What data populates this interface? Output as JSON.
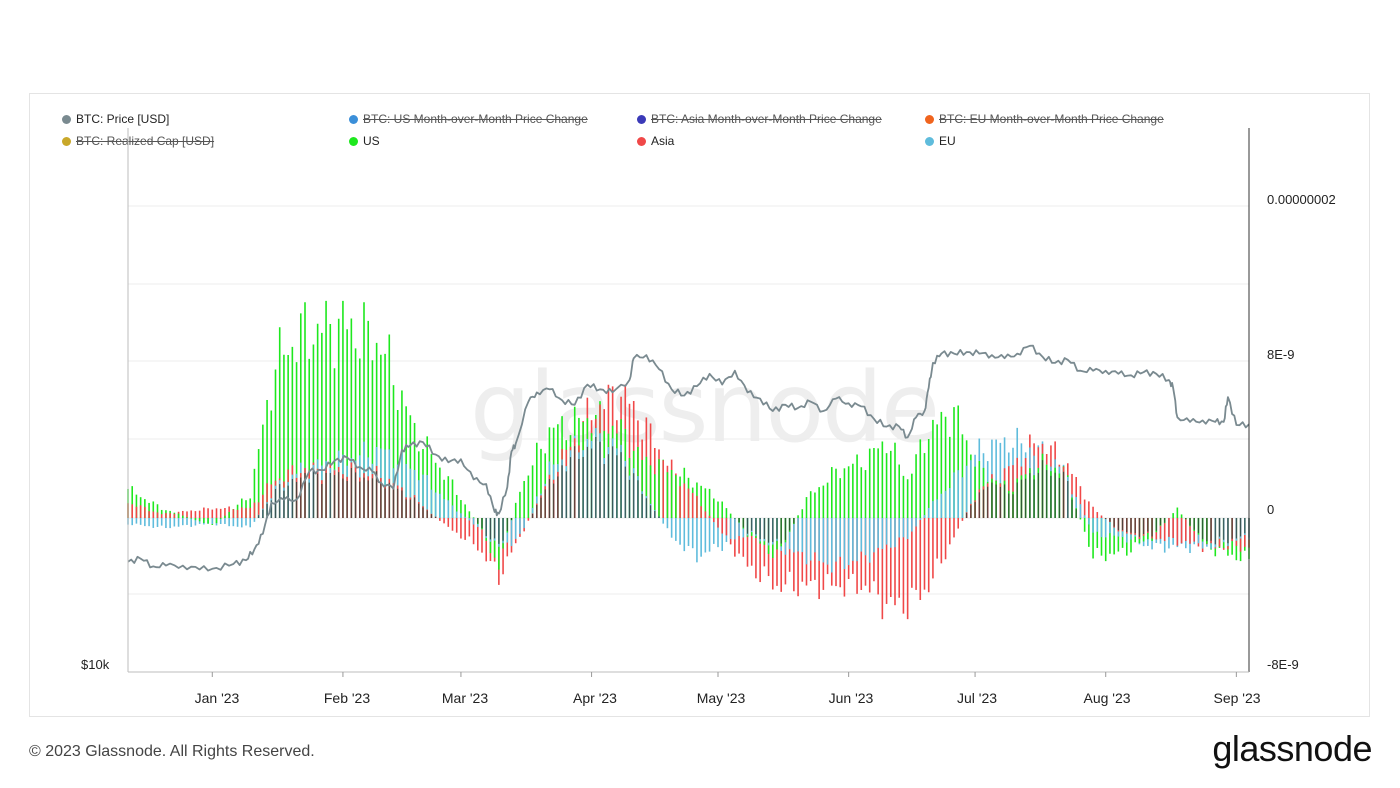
{
  "legend": [
    {
      "label": "BTC: Price [USD]",
      "color": "#7a8a90",
      "off": false
    },
    {
      "label": "BTC: US Month-over-Month Price Change",
      "color": "#3b8fd9",
      "off": true
    },
    {
      "label": "BTC: Asia Month-over-Month Price Change",
      "color": "#3b3ab8",
      "off": true
    },
    {
      "label": "BTC: EU Month-over-Month Price Change",
      "color": "#f0641e",
      "off": true
    },
    {
      "label": "BTC: Realized Cap [USD]",
      "color": "#c9a82a",
      "off": true
    },
    {
      "label": "US",
      "color": "#1ee81e",
      "off": false
    },
    {
      "label": "Asia",
      "color": "#f04848",
      "off": false
    },
    {
      "label": "EU",
      "color": "#5fbcdc",
      "off": false
    }
  ],
  "watermark": "glassnode",
  "footer": "© 2023 Glassnode. All Rights Reserved.",
  "brand": "glassnode",
  "chart_data": {
    "type": "bar",
    "title": "",
    "x_ticks": [
      "Jan '23",
      "Feb '23",
      "Mar '23",
      "Apr '23",
      "May '23",
      "Jun '23",
      "Jul '23",
      "Aug '23",
      "Sep '23"
    ],
    "x_tick_dates": [
      "2023-01-01",
      "2023-02-01",
      "2023-03-01",
      "2023-04-01",
      "2023-05-01",
      "2023-06-01",
      "2023-07-01",
      "2023-08-01",
      "2023-09-01"
    ],
    "x_range": [
      "2022-12-12",
      "2023-09-04"
    ],
    "y_right_ticks": [
      "0.00000002",
      "8E-9",
      "0",
      "-8E-9"
    ],
    "y_right_values": [
      2e-08,
      8e-09,
      0,
      -8e-09
    ],
    "y_right_range": [
      -8e-09,
      2.4e-08
    ],
    "y_left_ticks": [
      "$10k"
    ],
    "price_range": [
      10000,
      40000
    ],
    "price_series": {
      "name": "BTC: Price [USD]",
      "color": "#7a8a90",
      "dates": [
        "2022-12-12",
        "2022-12-15",
        "2022-12-18",
        "2022-12-21",
        "2022-12-25",
        "2022-12-29",
        "2023-01-02",
        "2023-01-06",
        "2023-01-09",
        "2023-01-11",
        "2023-01-13",
        "2023-01-15",
        "2023-01-18",
        "2023-01-21",
        "2023-01-24",
        "2023-01-27",
        "2023-01-30",
        "2023-02-02",
        "2023-02-05",
        "2023-02-08",
        "2023-02-10",
        "2023-02-13",
        "2023-02-15",
        "2023-02-17",
        "2023-02-20",
        "2023-02-23",
        "2023-02-26",
        "2023-03-01",
        "2023-03-04",
        "2023-03-07",
        "2023-03-09",
        "2023-03-10",
        "2023-03-12",
        "2023-03-13",
        "2023-03-14",
        "2023-03-17",
        "2023-03-19",
        "2023-03-22",
        "2023-03-25",
        "2023-03-28",
        "2023-03-31",
        "2023-04-03",
        "2023-04-06",
        "2023-04-10",
        "2023-04-11",
        "2023-04-14",
        "2023-04-17",
        "2023-04-20",
        "2023-04-23",
        "2023-04-26",
        "2023-04-29",
        "2023-05-02",
        "2023-05-05",
        "2023-05-08",
        "2023-05-11",
        "2023-05-14",
        "2023-05-17",
        "2023-05-20",
        "2023-05-23",
        "2023-05-26",
        "2023-05-29",
        "2023-06-01",
        "2023-06-04",
        "2023-06-07",
        "2023-06-10",
        "2023-06-13",
        "2023-06-15",
        "2023-06-17",
        "2023-06-19",
        "2023-06-20",
        "2023-06-21",
        "2023-06-23",
        "2023-06-26",
        "2023-06-29",
        "2023-07-02",
        "2023-07-05",
        "2023-07-08",
        "2023-07-11",
        "2023-07-14",
        "2023-07-17",
        "2023-07-20",
        "2023-07-23",
        "2023-07-26",
        "2023-07-29",
        "2023-08-01",
        "2023-08-04",
        "2023-08-07",
        "2023-08-10",
        "2023-08-13",
        "2023-08-16",
        "2023-08-17",
        "2023-08-18",
        "2023-08-21",
        "2023-08-24",
        "2023-08-27",
        "2023-08-29",
        "2023-08-30",
        "2023-09-01",
        "2023-09-04"
      ],
      "values": [
        17100,
        17300,
        16800,
        16850,
        16850,
        16600,
        16700,
        16950,
        17200,
        17900,
        18900,
        20900,
        21100,
        21100,
        22900,
        23000,
        23600,
        23800,
        23200,
        22900,
        22200,
        21800,
        24300,
        24600,
        24800,
        24000,
        23500,
        23700,
        22400,
        22100,
        20300,
        20200,
        21900,
        24200,
        24700,
        27400,
        28000,
        28200,
        27500,
        27200,
        28500,
        28200,
        28000,
        28800,
        30200,
        30400,
        29500,
        28200,
        27800,
        28400,
        29200,
        28500,
        29400,
        28000,
        27600,
        26800,
        27200,
        27000,
        27400,
        26800,
        27600,
        27300,
        27100,
        26300,
        25800,
        25800,
        25100,
        26400,
        26800,
        28300,
        29900,
        30500,
        30500,
        30600,
        30500,
        30400,
        30200,
        30500,
        31000,
        30300,
        29900,
        30100,
        29400,
        29400,
        29400,
        29200,
        29100,
        29300,
        29200,
        28800,
        28300,
        26400,
        26100,
        26200,
        26100,
        26100,
        27700,
        25900,
        25950
      ]
    },
    "series": [
      {
        "name": "US",
        "color": "#1ee81e"
      },
      {
        "name": "Asia",
        "color": "#f04848"
      },
      {
        "name": "EU",
        "color": "#5fbcdc"
      }
    ],
    "mom_change_keypoints": {
      "dates": [
        "2022-12-12",
        "2022-12-20",
        "2023-01-01",
        "2023-01-10",
        "2023-01-16",
        "2023-01-22",
        "2023-02-01",
        "2023-02-10",
        "2023-02-18",
        "2023-02-26",
        "2023-03-05",
        "2023-03-10",
        "2023-03-15",
        "2023-03-22",
        "2023-04-01",
        "2023-04-08",
        "2023-04-13",
        "2023-04-20",
        "2023-04-26",
        "2023-05-01",
        "2023-05-08",
        "2023-05-15",
        "2023-05-22",
        "2023-05-29",
        "2023-06-05",
        "2023-06-10",
        "2023-06-15",
        "2023-06-20",
        "2023-06-26",
        "2023-07-02",
        "2023-07-09",
        "2023-07-16",
        "2023-07-22",
        "2023-07-29",
        "2023-08-05",
        "2023-08-12",
        "2023-08-18",
        "2023-08-25",
        "2023-09-04"
      ],
      "US": [
        1.5e-09,
        5e-10,
        -4e-10,
        1.2e-09,
        8e-09,
        9.5e-09,
        1e-08,
        9e-09,
        4.5e-09,
        2e-09,
        -3e-10,
        -2.5e-09,
        1.5e-09,
        4.5e-09,
        5.2e-09,
        4.5e-09,
        3e-09,
        2.5e-09,
        1.8e-09,
        1e-09,
        -8e-10,
        -2e-09,
        1e-09,
        2.4e-09,
        3e-09,
        4e-09,
        2e-09,
        4.5e-09,
        5.5e-09,
        2.5e-09,
        1.5e-09,
        2.8e-09,
        2.5e-09,
        -2e-09,
        -1.8e-09,
        -1e-09,
        5e-10,
        -1.5e-09,
        -2.2e-09
      ],
      "Asia": [
        8e-10,
        2e-10,
        5e-10,
        5e-10,
        2e-09,
        2.5e-09,
        2.5e-09,
        2.2e-09,
        1e-09,
        -5e-10,
        -1.5e-09,
        -3e-09,
        -1e-09,
        2e-09,
        5.5e-09,
        6.5e-09,
        5e-09,
        2.5e-09,
        1e-09,
        -5e-10,
        -2.5e-09,
        -3.5e-09,
        -3.5e-09,
        -3.5e-09,
        -3.5e-09,
        -4.5e-09,
        -4.5e-09,
        -3.5e-09,
        -1e-09,
        1.5e-09,
        2.5e-09,
        4e-09,
        3e-09,
        5e-10,
        -8e-10,
        -1e-09,
        -1.2e-09,
        -1.5e-09,
        -1.5e-09
      ],
      "EU": [
        -3e-10,
        -5e-10,
        -3e-10,
        -5e-10,
        1.5e-09,
        2.5e-09,
        3e-09,
        3.5e-09,
        2.5e-09,
        8e-10,
        -5e-10,
        -1.5e-09,
        -1e-09,
        2.5e-09,
        4.2e-09,
        3.5e-09,
        1.5e-09,
        -1e-09,
        -2e-09,
        -1.5e-09,
        -8e-10,
        -1.5e-09,
        -2e-09,
        -2.5e-09,
        -2e-09,
        -1.5e-09,
        -1e-09,
        5e-10,
        2e-09,
        3.5e-09,
        4e-09,
        3.5e-09,
        2.5e-09,
        -8e-10,
        -1e-09,
        -1.5e-09,
        -1.5e-09,
        -1.5e-09,
        -1e-09
      ]
    }
  }
}
